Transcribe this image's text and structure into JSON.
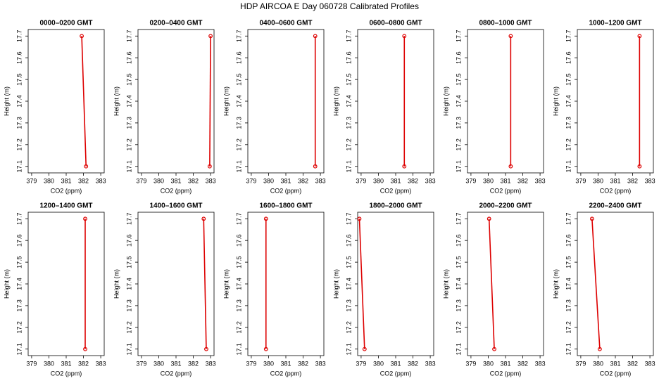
{
  "title": "HDP AIRCOA E  Day 060728  Calibrated Profiles",
  "chart_data": [
    {
      "type": "line",
      "title": "0000–0200 GMT",
      "x_label": "CO2 (ppm)",
      "y_label": "Height (m)",
      "color": "#dd0000",
      "x": [
        381.9,
        382.15
      ],
      "values": [
        17.7,
        17.1
      ],
      "xlim": [
        378.8,
        383.2
      ],
      "xticks": [
        379,
        380,
        381,
        382,
        383
      ],
      "ylim": [
        17.07,
        17.73
      ],
      "yticks": [
        17.1,
        17.2,
        17.3,
        17.4,
        17.5,
        17.6,
        17.7
      ]
    },
    {
      "type": "line",
      "title": "0200–0400 GMT",
      "x_label": "CO2 (ppm)",
      "y_label": "Height (m)",
      "color": "#dd0000",
      "x": [
        383.0,
        382.95
      ],
      "values": [
        17.7,
        17.1
      ],
      "xlim": [
        378.8,
        383.2
      ],
      "xticks": [
        379,
        380,
        381,
        382,
        383
      ],
      "ylim": [
        17.07,
        17.73
      ],
      "yticks": [
        17.1,
        17.2,
        17.3,
        17.4,
        17.5,
        17.6,
        17.7
      ]
    },
    {
      "type": "line",
      "title": "0400–0600 GMT",
      "x_label": "CO2 (ppm)",
      "y_label": "Height (m)",
      "color": "#dd0000",
      "x": [
        382.7,
        382.7
      ],
      "values": [
        17.7,
        17.1
      ],
      "xlim": [
        378.8,
        383.2
      ],
      "xticks": [
        379,
        380,
        381,
        382,
        383
      ],
      "ylim": [
        17.07,
        17.73
      ],
      "yticks": [
        17.1,
        17.2,
        17.3,
        17.4,
        17.5,
        17.6,
        17.7
      ]
    },
    {
      "type": "line",
      "title": "0600–0800 GMT",
      "x_label": "CO2 (ppm)",
      "y_label": "Height (m)",
      "color": "#dd0000",
      "x": [
        381.5,
        381.5
      ],
      "values": [
        17.7,
        17.1
      ],
      "xlim": [
        378.8,
        383.2
      ],
      "xticks": [
        379,
        380,
        381,
        382,
        383
      ],
      "ylim": [
        17.07,
        17.73
      ],
      "yticks": [
        17.1,
        17.2,
        17.3,
        17.4,
        17.5,
        17.6,
        17.7
      ]
    },
    {
      "type": "line",
      "title": "0800–1000 GMT",
      "x_label": "CO2 (ppm)",
      "y_label": "Height (m)",
      "color": "#dd0000",
      "x": [
        381.3,
        381.3
      ],
      "values": [
        17.7,
        17.1
      ],
      "xlim": [
        378.8,
        383.2
      ],
      "xticks": [
        379,
        380,
        381,
        382,
        383
      ],
      "ylim": [
        17.07,
        17.73
      ],
      "yticks": [
        17.1,
        17.2,
        17.3,
        17.4,
        17.5,
        17.6,
        17.7
      ]
    },
    {
      "type": "line",
      "title": "1000–1200 GMT",
      "x_label": "CO2 (ppm)",
      "y_label": "Height (m)",
      "color": "#dd0000",
      "x": [
        382.4,
        382.4
      ],
      "values": [
        17.7,
        17.1
      ],
      "xlim": [
        378.8,
        383.2
      ],
      "xticks": [
        379,
        380,
        381,
        382,
        383
      ],
      "ylim": [
        17.07,
        17.73
      ],
      "yticks": [
        17.1,
        17.2,
        17.3,
        17.4,
        17.5,
        17.6,
        17.7
      ]
    },
    {
      "type": "line",
      "title": "1200–1400 GMT",
      "x_label": "CO2 (ppm)",
      "y_label": "Height (m)",
      "color": "#dd0000",
      "x": [
        382.1,
        382.1
      ],
      "values": [
        17.7,
        17.1
      ],
      "xlim": [
        378.8,
        383.2
      ],
      "xticks": [
        379,
        380,
        381,
        382,
        383
      ],
      "ylim": [
        17.07,
        17.73
      ],
      "yticks": [
        17.1,
        17.2,
        17.3,
        17.4,
        17.5,
        17.6,
        17.7
      ]
    },
    {
      "type": "line",
      "title": "1400–1600 GMT",
      "x_label": "CO2 (ppm)",
      "y_label": "Height (m)",
      "color": "#dd0000",
      "x": [
        382.6,
        382.75
      ],
      "values": [
        17.7,
        17.1
      ],
      "xlim": [
        378.8,
        383.2
      ],
      "xticks": [
        379,
        380,
        381,
        382,
        383
      ],
      "ylim": [
        17.07,
        17.73
      ],
      "yticks": [
        17.1,
        17.2,
        17.3,
        17.4,
        17.5,
        17.6,
        17.7
      ]
    },
    {
      "type": "line",
      "title": "1600–1800 GMT",
      "x_label": "CO2 (ppm)",
      "y_label": "Height (m)",
      "color": "#dd0000",
      "x": [
        379.85,
        379.85
      ],
      "values": [
        17.7,
        17.1
      ],
      "xlim": [
        378.8,
        383.2
      ],
      "xticks": [
        379,
        380,
        381,
        382,
        383
      ],
      "ylim": [
        17.07,
        17.73
      ],
      "yticks": [
        17.1,
        17.2,
        17.3,
        17.4,
        17.5,
        17.6,
        17.7
      ]
    },
    {
      "type": "line",
      "title": "1800–2000 GMT",
      "x_label": "CO2 (ppm)",
      "y_label": "Height (m)",
      "color": "#dd0000",
      "x": [
        378.9,
        379.2
      ],
      "values": [
        17.7,
        17.1
      ],
      "xlim": [
        378.8,
        383.2
      ],
      "xticks": [
        379,
        380,
        381,
        382,
        383
      ],
      "ylim": [
        17.07,
        17.73
      ],
      "yticks": [
        17.1,
        17.2,
        17.3,
        17.4,
        17.5,
        17.6,
        17.7
      ]
    },
    {
      "type": "line",
      "title": "2000–2200 GMT",
      "x_label": "CO2 (ppm)",
      "y_label": "Height (m)",
      "color": "#dd0000",
      "x": [
        380.05,
        380.35
      ],
      "values": [
        17.7,
        17.1
      ],
      "xlim": [
        378.8,
        383.2
      ],
      "xticks": [
        379,
        380,
        381,
        382,
        383
      ],
      "ylim": [
        17.07,
        17.73
      ],
      "yticks": [
        17.1,
        17.2,
        17.3,
        17.4,
        17.5,
        17.6,
        17.7
      ]
    },
    {
      "type": "line",
      "title": "2200–2400 GMT",
      "x_label": "CO2 (ppm)",
      "y_label": "Height (m)",
      "color": "#dd0000",
      "x": [
        379.65,
        380.1
      ],
      "values": [
        17.7,
        17.1
      ],
      "xlim": [
        378.8,
        383.2
      ],
      "xticks": [
        379,
        380,
        381,
        382,
        383
      ],
      "ylim": [
        17.07,
        17.73
      ],
      "yticks": [
        17.1,
        17.2,
        17.3,
        17.4,
        17.5,
        17.6,
        17.7
      ]
    }
  ]
}
